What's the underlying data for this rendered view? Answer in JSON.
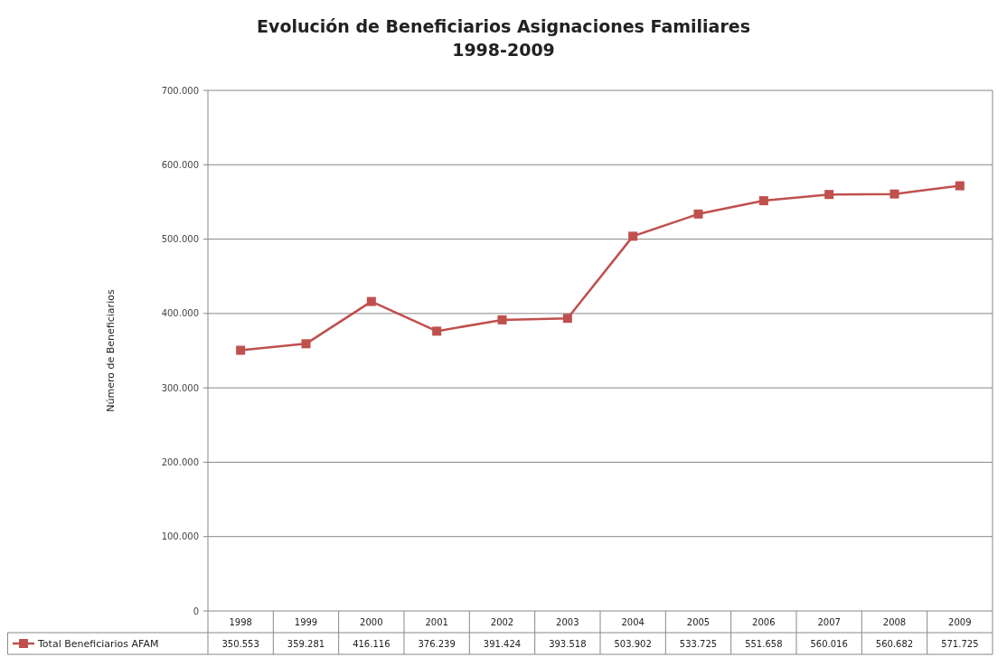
{
  "chart_data": {
    "type": "line",
    "title": "Evolución de Beneficiarios Asignaciones Familiares",
    "subtitle": "1998-2009",
    "ylabel": "Número de Beneficiarios",
    "categories": [
      "1998",
      "1999",
      "2000",
      "2001",
      "2002",
      "2003",
      "2004",
      "2005",
      "2006",
      "2007",
      "2008",
      "2009"
    ],
    "series": [
      {
        "name": "Total Beneficiarios  AFAM",
        "color": "#c0504d",
        "values": [
          350553,
          359281,
          416116,
          376239,
          391424,
          393518,
          503902,
          533725,
          551658,
          560016,
          560682,
          571725
        ],
        "value_labels": [
          "350.553",
          "359.281",
          "416.116",
          "376.239",
          "391.424",
          "393.518",
          "503.902",
          "533.725",
          "551.658",
          "560.016",
          "560.682",
          "571.725"
        ]
      }
    ],
    "ylim": [
      0,
      700000
    ],
    "yticks": [
      {
        "value": 0,
        "label": "0"
      },
      {
        "value": 100000,
        "label": "100.000"
      },
      {
        "value": 200000,
        "label": "200.000"
      },
      {
        "value": 300000,
        "label": "300.000"
      },
      {
        "value": 400000,
        "label": "400.000"
      },
      {
        "value": 500000,
        "label": "500.000"
      },
      {
        "value": 600000,
        "label": "600.000"
      },
      {
        "value": 700000,
        "label": "700.000"
      }
    ],
    "grid": "y",
    "legend": "bottom",
    "marker": "square",
    "line_style": "solid"
  }
}
